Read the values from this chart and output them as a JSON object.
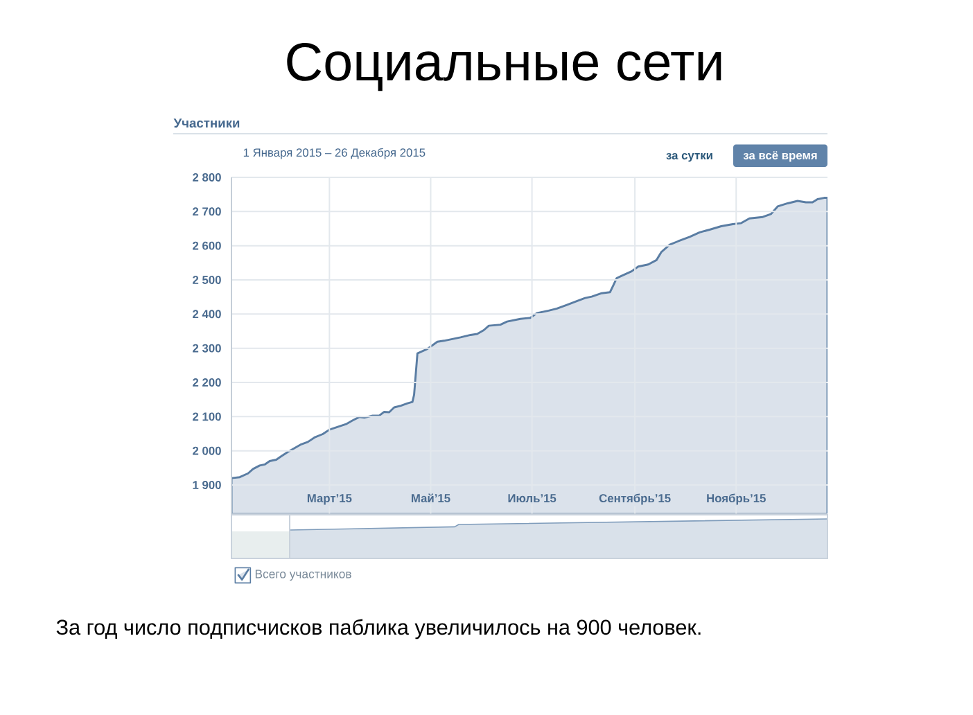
{
  "chart_data": {
    "type": "area",
    "title": "Социальные сети",
    "subtitle": "Участники",
    "annotations": [
      "1 Января 2015 – 26 Декабря 2015",
      "за сутки",
      "за всё время",
      "За год число подписчисков паблика увеличилось на 900 человек."
    ],
    "x": [
      "2015-01-01",
      "2015-01-06",
      "2015-01-11",
      "2015-01-14",
      "2015-01-18",
      "2015-01-21",
      "2015-01-24",
      "2015-01-28",
      "2015-01-31",
      "2015-02-04",
      "2015-02-08",
      "2015-02-12",
      "2015-02-16",
      "2015-02-20",
      "2015-02-25",
      "2015-03-01",
      "2015-03-06",
      "2015-03-11",
      "2015-03-15",
      "2015-03-19",
      "2015-03-22",
      "2015-03-27",
      "2015-03-31",
      "2015-04-03",
      "2015-04-06",
      "2015-04-09",
      "2015-04-13",
      "2015-04-17",
      "2015-04-20",
      "2015-04-21",
      "2015-04-23",
      "2015-04-29",
      "2015-05-05",
      "2015-05-09",
      "2015-05-13",
      "2015-05-19",
      "2015-05-25",
      "2015-05-29",
      "2015-06-02",
      "2015-06-05",
      "2015-06-12",
      "2015-06-16",
      "2015-06-24",
      "2015-06-30",
      "2015-07-04",
      "2015-07-11",
      "2015-07-16",
      "2015-07-22",
      "2015-07-28",
      "2015-08-02",
      "2015-08-06",
      "2015-08-12",
      "2015-08-17",
      "2015-08-19",
      "2015-08-21",
      "2015-08-24",
      "2015-08-30",
      "2015-09-03",
      "2015-09-09",
      "2015-09-14",
      "2015-09-17",
      "2015-09-22",
      "2015-09-27",
      "2015-10-04",
      "2015-10-10",
      "2015-10-16",
      "2015-10-23",
      "2015-10-30",
      "2015-11-04",
      "2015-11-09",
      "2015-11-17",
      "2015-11-22",
      "2015-11-26",
      "2015-12-02",
      "2015-12-08",
      "2015-12-13",
      "2015-12-17",
      "2015-12-20",
      "2015-12-24",
      "2015-12-26"
    ],
    "series": [
      {
        "name": "Всего участников",
        "color": "#5a7da3",
        "values": [
          1920,
          1923,
          1934,
          1947,
          1957,
          1960,
          1970,
          1974,
          1984,
          1997,
          2008,
          2019,
          2026,
          2039,
          2049,
          2062,
          2070,
          2078,
          2089,
          2099,
          2097,
          2103,
          2103,
          2114,
          2113,
          2127,
          2132,
          2139,
          2143,
          2164,
          2285,
          2298,
          2319,
          2322,
          2326,
          2332,
          2339,
          2342,
          2353,
          2366,
          2369,
          2378,
          2386,
          2389,
          2403,
          2410,
          2416,
          2427,
          2438,
          2447,
          2451,
          2461,
          2464,
          2484,
          2505,
          2512,
          2525,
          2539,
          2545,
          2558,
          2582,
          2603,
          2613,
          2626,
          2639,
          2647,
          2657,
          2663,
          2666,
          2680,
          2684,
          2693,
          2715,
          2724,
          2731,
          2727,
          2727,
          2736,
          2740,
          2740
        ]
      }
    ],
    "xlim": [
      "2015-01-01",
      "2015-12-26"
    ],
    "xticks": [
      {
        "value": "2015-03-01",
        "label": "Март’15"
      },
      {
        "value": "2015-05-01",
        "label": "Май’15"
      },
      {
        "value": "2015-07-01",
        "label": "Июль’15"
      },
      {
        "value": "2015-09-01",
        "label": "Сентябрь’15"
      },
      {
        "value": "2015-11-01",
        "label": "Ноябрь’15"
      }
    ],
    "ylim": [
      1815,
      2800
    ],
    "yticks": [
      {
        "value": 1900,
        "label": "1 900"
      },
      {
        "value": 2000,
        "label": "2 000"
      },
      {
        "value": 2100,
        "label": "2 100"
      },
      {
        "value": 2200,
        "label": "2 200"
      },
      {
        "value": 2300,
        "label": "2 300"
      },
      {
        "value": 2400,
        "label": "2 400"
      },
      {
        "value": 2500,
        "label": "2 500"
      },
      {
        "value": 2600,
        "label": "2 600"
      },
      {
        "value": 2700,
        "label": "2 700"
      },
      {
        "value": 2800,
        "label": "2 800"
      }
    ],
    "grid": true,
    "legend": "bottom left"
  }
}
